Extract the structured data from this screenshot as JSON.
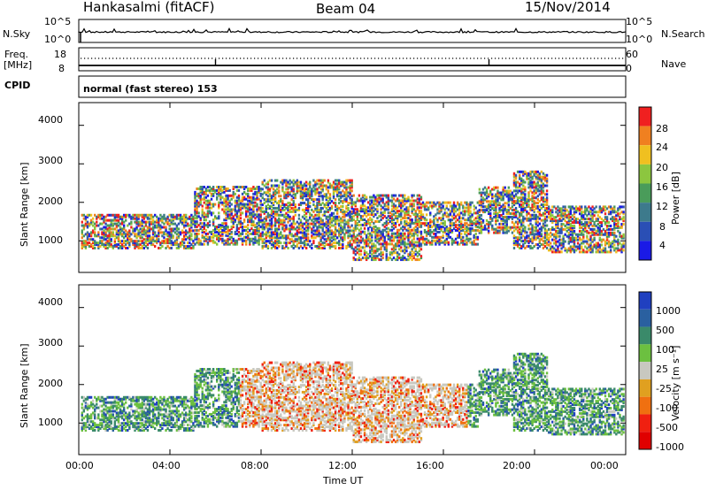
{
  "header": {
    "station": "Hankasalmi (fitACF)",
    "beam": "Beam 04",
    "date": "15/Nov/2014"
  },
  "top_panels": {
    "nsky_label": "N.Sky",
    "nsearch_label": "N.Search",
    "nsky_ticks": [
      "10^5",
      "10^0"
    ],
    "nsearch_ticks": [
      "10^5",
      "10^0"
    ],
    "freq_label": "Freq.",
    "freq_unit": "[MHz]",
    "freq_ticks": [
      "18",
      "8"
    ],
    "nave_label": "Nave",
    "nave_ticks": [
      "60",
      "0"
    ],
    "cpid_label": "CPID",
    "cpid_text": "normal (fast stereo) 153"
  },
  "chart_data": [
    {
      "type": "heatmap",
      "name": "power",
      "ylabel": "Slant Range [km]",
      "ylim": [
        180,
        4590
      ],
      "yticks": [
        1000,
        2000,
        3000,
        4000
      ],
      "xlim": [
        0,
        24
      ],
      "colorbar_label": "Power [dB]",
      "colorbar_ticks": [
        "4",
        "8",
        "12",
        "16",
        "20",
        "24",
        "28"
      ],
      "colorbar_colors": [
        "#1a1ae6",
        "#2a4fb5",
        "#3d7a8c",
        "#4a9c5a",
        "#8cc63f",
        "#f0c020",
        "#f08020",
        "#f02020"
      ]
    },
    {
      "type": "heatmap",
      "name": "velocity",
      "ylabel": "Slant Range [km]",
      "ylim": [
        180,
        4590
      ],
      "yticks": [
        1000,
        2000,
        3000,
        4000
      ],
      "xlim": [
        0,
        24
      ],
      "xlabel": "Time UT",
      "xticks": [
        "00:00",
        "04:00",
        "08:00",
        "12:00",
        "16:00",
        "20:00",
        "00:00"
      ],
      "colorbar_label": "Velocity [m s⁻¹]",
      "colorbar_ticks": [
        "1000",
        "500",
        "100",
        "25",
        "-25",
        "-100",
        "-500",
        "-1000"
      ],
      "colorbar_colors": [
        "#2040c0",
        "#2a60a0",
        "#3a8a6a",
        "#6cc040",
        "#c8c8c0",
        "#e0a020",
        "#f07010",
        "#f02010",
        "#e00000"
      ]
    }
  ]
}
